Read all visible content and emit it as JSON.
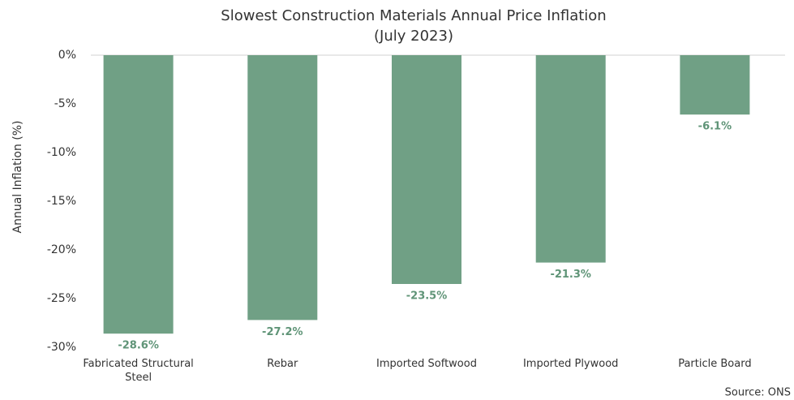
{
  "chart_data": {
    "type": "bar",
    "title": "Slowest Construction Materials Annual Price Inflation",
    "subtitle": "(July 2023)",
    "y_label": "Annual Inflation (%)",
    "source": "Source: ONS",
    "categories": [
      "Fabricated Structural Steel",
      "Rebar",
      "Imported Softwood",
      "Imported Plywood",
      "Particle Board"
    ],
    "values": [
      -28.6,
      -27.2,
      -23.5,
      -21.3,
      -6.1
    ],
    "value_labels": [
      "-28.6%",
      "-27.2%",
      "-23.5%",
      "-21.3%",
      "-6.1%"
    ],
    "color": "#70a085",
    "label_color": "#5f9477",
    "ylim": [
      -30,
      0
    ],
    "yticks": [
      {
        "value": 0,
        "label": "0%"
      },
      {
        "value": -5,
        "label": "-5%"
      },
      {
        "value": -10,
        "label": "-10%"
      },
      {
        "value": -15,
        "label": "-15%"
      },
      {
        "value": -20,
        "label": "-20%"
      },
      {
        "value": -25,
        "label": "-25%"
      },
      {
        "value": -30,
        "label": "-30%"
      }
    ],
    "grid": false
  }
}
